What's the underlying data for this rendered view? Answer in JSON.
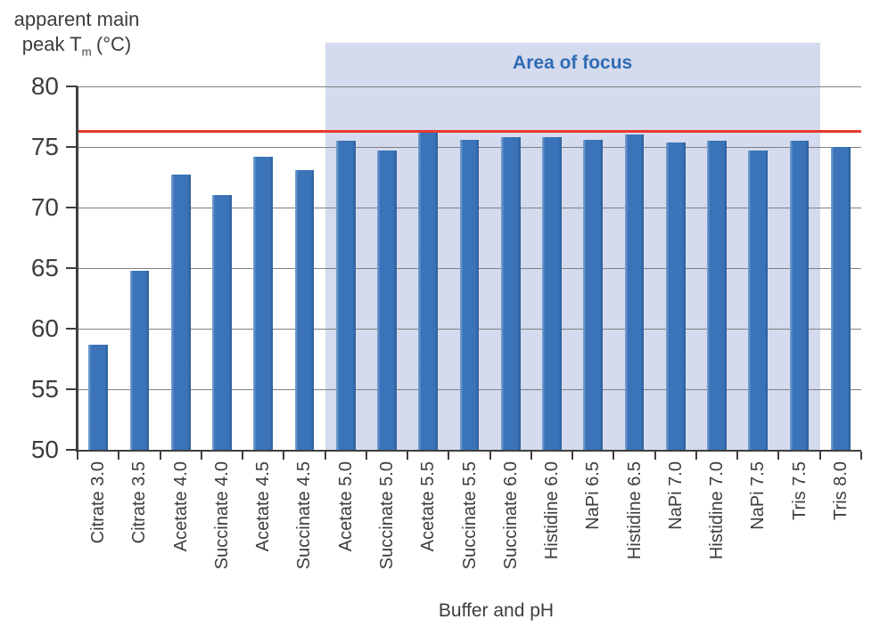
{
  "chart_data": {
    "type": "bar",
    "title": "",
    "xlabel": "Buffer and pH",
    "ylabel_flat": "apparent main peak Tm (°C)",
    "y_axis_title": {
      "line1": "apparent main",
      "line2_prefix": "peak T",
      "line2_sub": "m",
      "line2_suffix": "(°C)"
    },
    "ylim": [
      50,
      80
    ],
    "yticks": [
      50,
      55,
      60,
      65,
      70,
      75,
      80
    ],
    "grid": true,
    "legend": "none",
    "categories": [
      "Citrate 3.0",
      "Citrate 3.5",
      "Acetate 4.0",
      "Succinate 4.0",
      "Acetate 4.5",
      "Succinate 4.5",
      "Acetate 5.0",
      "Succinate 5.0",
      "Acetate 5.5",
      "Succinate 5.5",
      "Succinate 6.0",
      "Histidine 6.0",
      "NaPi 6.5",
      "Histidine 6.5",
      "NaPi 7.0",
      "Histidine 7.0",
      "NaPi 7.5",
      "Tris 7.5",
      "Tris 8.0"
    ],
    "values": [
      58.7,
      64.8,
      72.7,
      71.0,
      74.2,
      73.1,
      75.5,
      74.7,
      76.3,
      75.6,
      75.8,
      75.8,
      75.6,
      76.0,
      75.4,
      75.5,
      74.7,
      75.5,
      75.0
    ],
    "reference_line": {
      "value": 76.3,
      "color": "#e8382e"
    },
    "focus_region": {
      "label": "Area of focus",
      "start_category": "Acetate 5.0",
      "end_category": "Tris 7.5",
      "start_index": 6,
      "end_index": 17,
      "fill": "#d5dbee",
      "label_color": "#2f6cb4"
    },
    "colors": {
      "bar": "#3a73b8",
      "bar_edge_light": "#7ea6d4",
      "bar_edge_dark": "#2d5c95",
      "gridline": "#808080",
      "axis": "#3f3f3f",
      "text": "#3d3d3d"
    }
  }
}
